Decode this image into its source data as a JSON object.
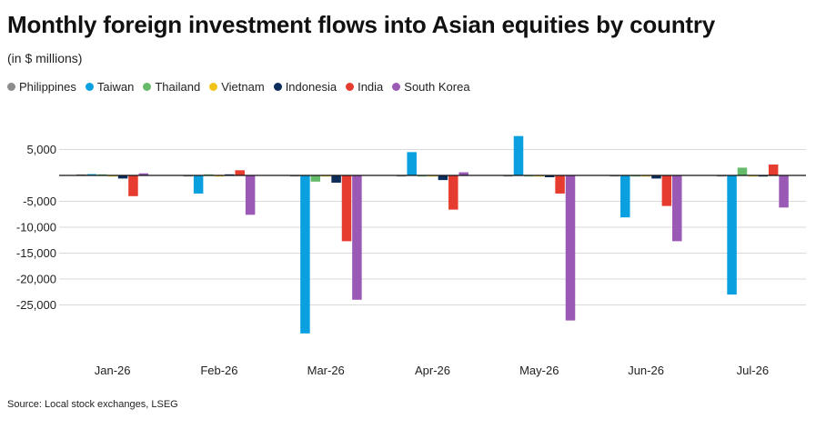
{
  "header": {
    "title": "Monthly foreign investment flows into Asian equities by country",
    "subtitle": "(in $ millions)"
  },
  "footer": {
    "source": "Source: Local stock exchanges, LSEG"
  },
  "chart_data": {
    "type": "bar",
    "title": "Monthly foreign investment flows into Asian equities by country",
    "subtitle": "(in $ millions)",
    "xlabel": "",
    "ylabel": "",
    "categories": [
      "Jan-26",
      "Feb-26",
      "Mar-26",
      "Apr-26",
      "May-26",
      "Jun-26",
      "Jul-26"
    ],
    "y_ticks": [
      5000,
      0,
      -5000,
      -10000,
      -15000,
      -20000,
      -25000
    ],
    "y_tick_labels": [
      "5,000",
      "",
      "-5,000",
      "-10,000",
      "-15,000",
      "-20,000",
      "-25,000"
    ],
    "ylim": [
      -35000,
      7000
    ],
    "grid": true,
    "legend_position": "top-left",
    "series": [
      {
        "name": "Philippines",
        "color": "#8c8c8c",
        "values": [
          100,
          -50,
          -100,
          -150,
          -150,
          -50,
          -50
        ]
      },
      {
        "name": "Taiwan",
        "color": "#0aa0e0",
        "values": [
          250,
          -3500,
          -30500,
          4500,
          7600,
          -8100,
          -23000
        ]
      },
      {
        "name": "Thailand",
        "color": "#66bb6a",
        "values": [
          100,
          150,
          -1200,
          -50,
          -50,
          -50,
          1500
        ]
      },
      {
        "name": "Vietnam",
        "color": "#f2c31b",
        "values": [
          -100,
          -100,
          -100,
          -50,
          -50,
          -50,
          -50
        ]
      },
      {
        "name": "Indonesia",
        "color": "#0d2d5b",
        "values": [
          -600,
          50,
          -1400,
          -900,
          -350,
          -600,
          -50
        ]
      },
      {
        "name": "India",
        "color": "#e63c2f",
        "values": [
          -4000,
          1000,
          -12700,
          -6600,
          -3500,
          -5900,
          2100
        ]
      },
      {
        "name": "South Korea",
        "color": "#9b59b6",
        "values": [
          400,
          -7600,
          -24000,
          600,
          -28000,
          -12700,
          -6200
        ]
      }
    ]
  }
}
